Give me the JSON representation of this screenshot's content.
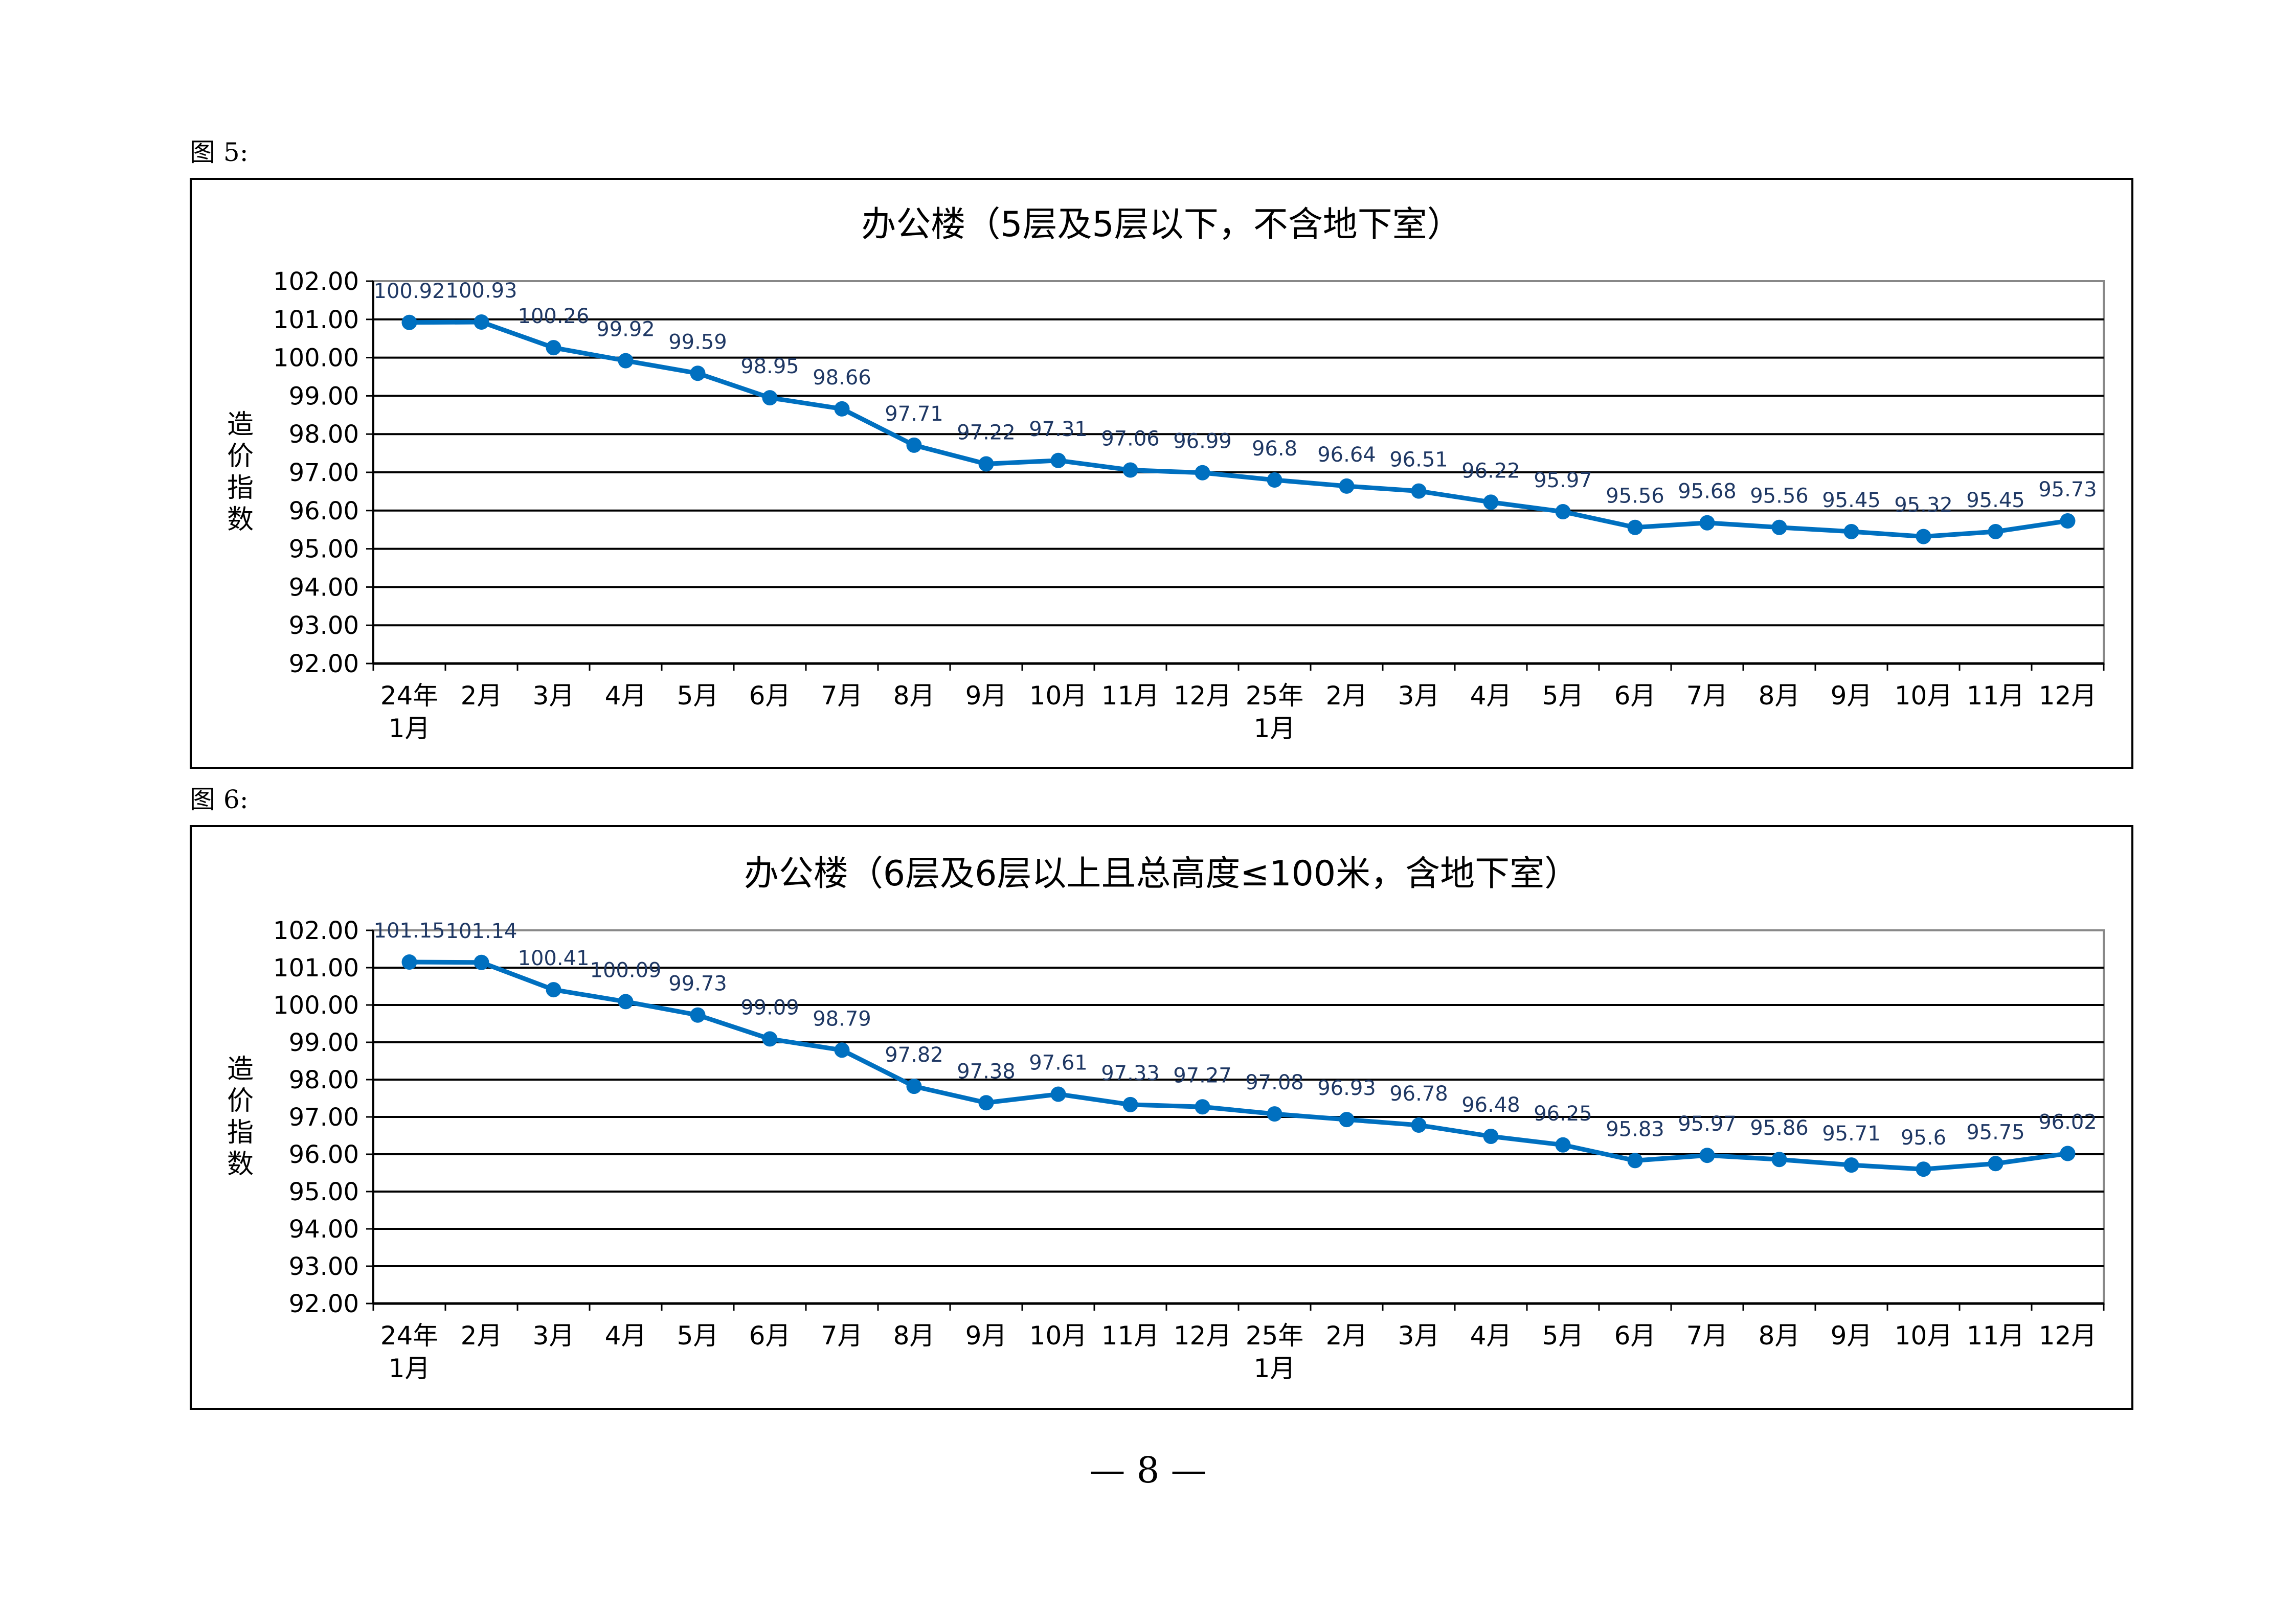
{
  "page_number": "— 8 —",
  "chart_data": [
    {
      "figure_label": "图 5:",
      "type": "line",
      "title": "办公楼（5层及5层以下，不含地下室）",
      "ylabel": "造价指数",
      "xlabel": "",
      "ylim": [
        92,
        102
      ],
      "yticks": [
        "92.00",
        "93.00",
        "94.00",
        "95.00",
        "96.00",
        "97.00",
        "98.00",
        "99.00",
        "100.00",
        "101.00",
        "102.00"
      ],
      "grid": true,
      "color": "#0070C0",
      "label_color": "#1F3864",
      "categories": [
        [
          "24年",
          "1月"
        ],
        [
          "2月"
        ],
        [
          "3月"
        ],
        [
          "4月"
        ],
        [
          "5月"
        ],
        [
          "6月"
        ],
        [
          "7月"
        ],
        [
          "8月"
        ],
        [
          "9月"
        ],
        [
          "10月"
        ],
        [
          "11月"
        ],
        [
          "12月"
        ],
        [
          "25年",
          "1月"
        ],
        [
          "2月"
        ],
        [
          "3月"
        ],
        [
          "4月"
        ],
        [
          "5月"
        ],
        [
          "6月"
        ],
        [
          "7月"
        ],
        [
          "8月"
        ],
        [
          "9月"
        ],
        [
          "10月"
        ],
        [
          "11月"
        ],
        [
          "12月"
        ]
      ],
      "values": [
        100.92,
        100.93,
        100.26,
        99.92,
        99.59,
        98.95,
        98.66,
        97.71,
        97.22,
        97.31,
        97.06,
        96.99,
        96.8,
        96.64,
        96.51,
        96.22,
        95.97,
        95.56,
        95.68,
        95.56,
        95.45,
        95.32,
        95.45,
        95.73
      ]
    },
    {
      "figure_label": "图 6:",
      "type": "line",
      "title": "办公楼（6层及6层以上且总高度≤100米，含地下室）",
      "ylabel": "造价指数",
      "xlabel": "",
      "ylim": [
        92,
        102
      ],
      "yticks": [
        "92.00",
        "93.00",
        "94.00",
        "95.00",
        "96.00",
        "97.00",
        "98.00",
        "99.00",
        "100.00",
        "101.00",
        "102.00"
      ],
      "grid": true,
      "color": "#0070C0",
      "label_color": "#1F3864",
      "categories": [
        [
          "24年",
          "1月"
        ],
        [
          "2月"
        ],
        [
          "3月"
        ],
        [
          "4月"
        ],
        [
          "5月"
        ],
        [
          "6月"
        ],
        [
          "7月"
        ],
        [
          "8月"
        ],
        [
          "9月"
        ],
        [
          "10月"
        ],
        [
          "11月"
        ],
        [
          "12月"
        ],
        [
          "25年",
          "1月"
        ],
        [
          "2月"
        ],
        [
          "3月"
        ],
        [
          "4月"
        ],
        [
          "5月"
        ],
        [
          "6月"
        ],
        [
          "7月"
        ],
        [
          "8月"
        ],
        [
          "9月"
        ],
        [
          "10月"
        ],
        [
          "11月"
        ],
        [
          "12月"
        ]
      ],
      "values": [
        101.15,
        101.14,
        100.41,
        100.09,
        99.73,
        99.09,
        98.79,
        97.82,
        97.38,
        97.61,
        97.33,
        97.27,
        97.08,
        96.93,
        96.78,
        96.48,
        96.25,
        95.83,
        95.97,
        95.86,
        95.71,
        95.6,
        95.75,
        96.02
      ]
    }
  ]
}
